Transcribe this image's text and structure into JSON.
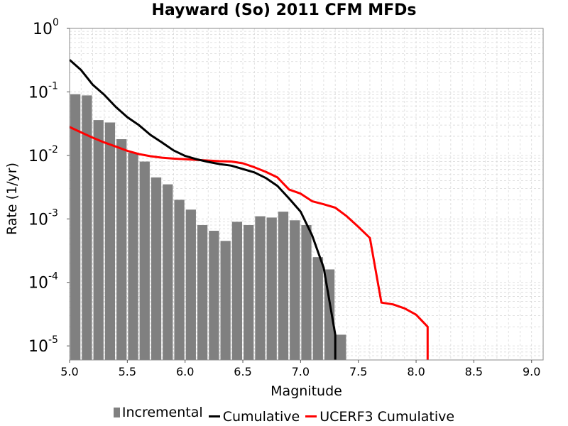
{
  "title": "Hayward (So) 2011 CFM MFDs",
  "xlabel": "Magnitude",
  "ylabel": "Rate (1/yr)",
  "colors": {
    "incremental": "#808080",
    "cumulative": "#000000",
    "ucerf3": "#ff0000",
    "grid": "#d8d8d8"
  },
  "legend": [
    {
      "key": "incremental",
      "label": "Incremental",
      "kind": "bar"
    },
    {
      "key": "cumulative",
      "label": "Cumulative",
      "kind": "line"
    },
    {
      "key": "ucerf3",
      "label": "UCERF3 Cumulative",
      "kind": "line"
    }
  ],
  "chart_data": {
    "type": "bar+line",
    "title": "Hayward (So) 2011 CFM MFDs",
    "xlabel": "Magnitude",
    "ylabel": "Rate (1/yr)",
    "xlim": [
      5.0,
      9.1
    ],
    "ylim": [
      6e-06,
      1.0
    ],
    "yscale": "log",
    "grid": true,
    "legend_position": "bottom",
    "x_ticks": [
      "5.0",
      "5.5",
      "6.0",
      "6.5",
      "7.0",
      "7.5",
      "8.0",
      "8.5",
      "9.0"
    ],
    "y_ticks": [
      {
        "base": "10",
        "exp": "-5",
        "value": 1e-05
      },
      {
        "base": "10",
        "exp": "-4",
        "value": 0.0001
      },
      {
        "base": "10",
        "exp": "-3",
        "value": 0.001
      },
      {
        "base": "10",
        "exp": "-2",
        "value": 0.01
      },
      {
        "base": "10",
        "exp": "-1",
        "value": 0.1
      },
      {
        "base": "10",
        "exp": "0",
        "value": 1
      }
    ],
    "series": [
      {
        "name": "Incremental",
        "type": "bar",
        "x": [
          5.05,
          5.15,
          5.25,
          5.35,
          5.45,
          5.55,
          5.65,
          5.75,
          5.85,
          5.95,
          6.05,
          6.15,
          6.25,
          6.35,
          6.45,
          6.55,
          6.65,
          6.75,
          6.85,
          6.95,
          7.05,
          7.15,
          7.25,
          7.35
        ],
        "values": [
          0.092,
          0.088,
          0.036,
          0.033,
          0.018,
          0.011,
          0.008,
          0.0045,
          0.0035,
          0.002,
          0.0014,
          0.0008,
          0.00065,
          0.00045,
          0.0009,
          0.0008,
          0.0011,
          0.00105,
          0.0013,
          0.00095,
          0.0008,
          0.00025,
          0.00016,
          1.5e-05
        ]
      },
      {
        "name": "Cumulative",
        "type": "line",
        "x": [
          5.0,
          5.1,
          5.2,
          5.3,
          5.4,
          5.5,
          5.6,
          5.7,
          5.8,
          5.9,
          6.0,
          6.1,
          6.2,
          6.3,
          6.4,
          6.5,
          6.6,
          6.7,
          6.8,
          6.9,
          7.0,
          7.1,
          7.2,
          7.3,
          7.3
        ],
        "values": [
          0.32,
          0.22,
          0.13,
          0.09,
          0.058,
          0.04,
          0.03,
          0.021,
          0.016,
          0.012,
          0.0098,
          0.0087,
          0.0079,
          0.0073,
          0.0069,
          0.0061,
          0.0054,
          0.0044,
          0.0033,
          0.0021,
          0.0013,
          0.00055,
          0.00017,
          1.5e-05,
          6e-06
        ]
      },
      {
        "name": "UCERF3 Cumulative",
        "type": "line",
        "x": [
          5.0,
          5.1,
          5.2,
          5.3,
          5.4,
          5.5,
          5.6,
          5.7,
          5.8,
          5.9,
          6.0,
          6.1,
          6.2,
          6.3,
          6.4,
          6.5,
          6.6,
          6.7,
          6.8,
          6.9,
          7.0,
          7.1,
          7.2,
          7.3,
          7.4,
          7.5,
          7.6,
          7.7,
          7.8,
          7.9,
          8.0,
          8.1,
          8.1
        ],
        "values": [
          0.028,
          0.023,
          0.019,
          0.016,
          0.0138,
          0.0118,
          0.0105,
          0.0097,
          0.0092,
          0.0089,
          0.0087,
          0.0085,
          0.0083,
          0.0081,
          0.008,
          0.0075,
          0.0065,
          0.0055,
          0.0045,
          0.0029,
          0.0025,
          0.0019,
          0.0017,
          0.0015,
          0.0011,
          0.00075,
          0.0005,
          4.8e-05,
          4.5e-05,
          3.9e-05,
          3.1e-05,
          2e-05,
          6e-06
        ]
      }
    ]
  }
}
